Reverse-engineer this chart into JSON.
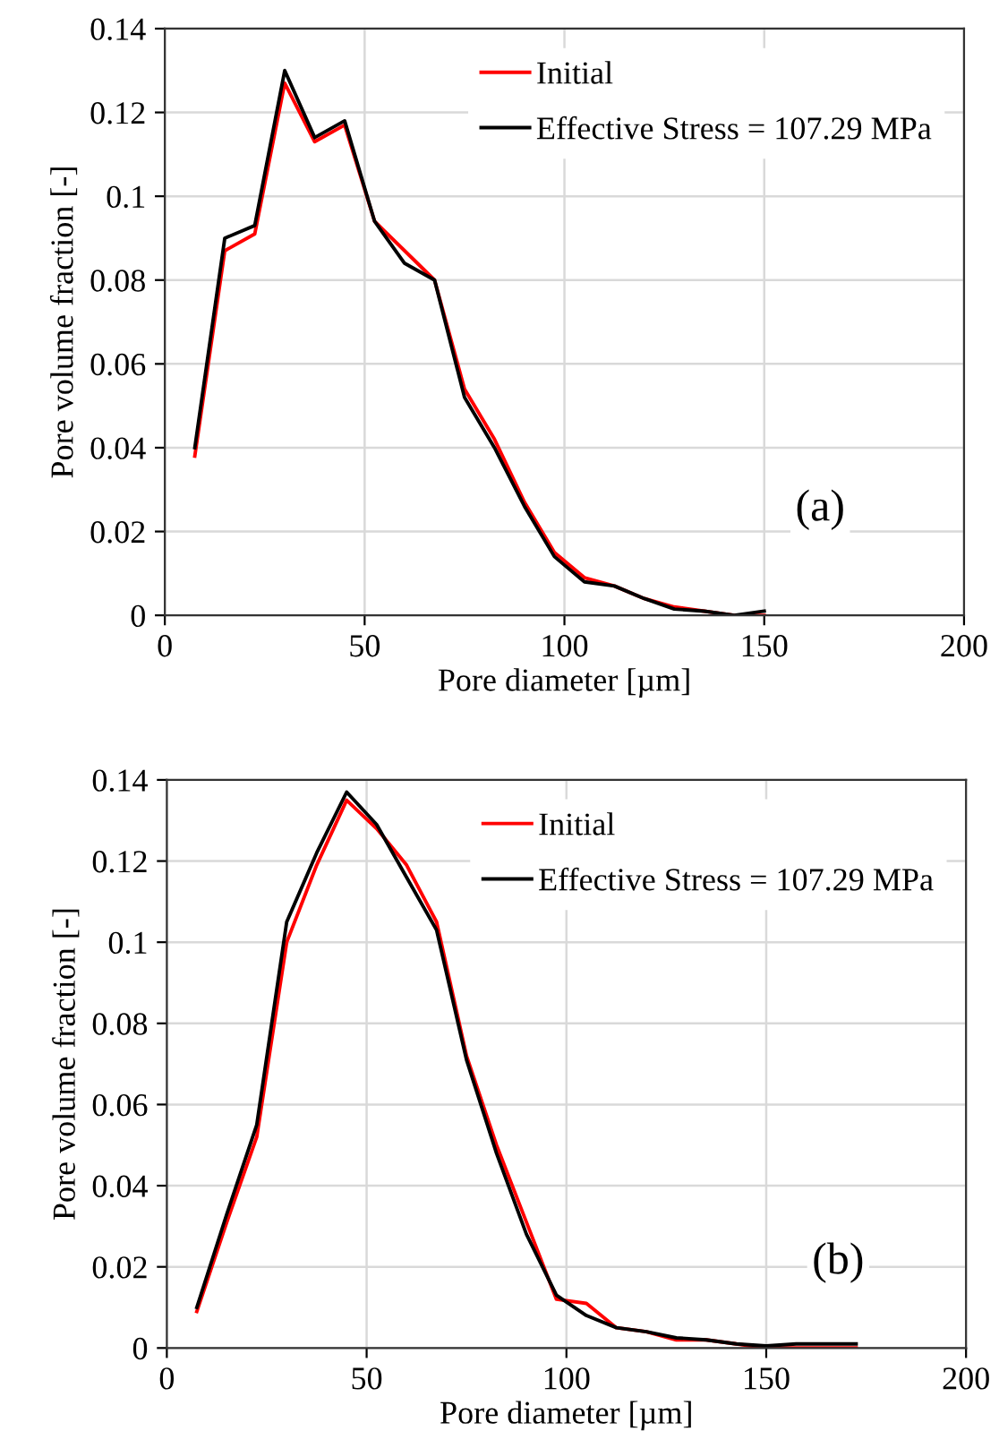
{
  "chart_data": [
    {
      "type": "line",
      "xlabel": "Pore diameter [µm]",
      "ylabel": "Pore volume fraction [-]",
      "annotations": [
        "(a)"
      ],
      "xlim": [
        0,
        200
      ],
      "xticks": [
        0,
        50,
        100,
        150,
        200
      ],
      "ylim": [
        0,
        0.14
      ],
      "yticks": [
        0,
        0.02,
        0.04,
        0.06,
        0.08,
        0.1,
        0.12,
        0.14
      ],
      "grid": true,
      "legend": "top right",
      "marker": "none",
      "line_style": "solid",
      "x": [
        7.5,
        15,
        22.5,
        30,
        37.5,
        45,
        52.5,
        60,
        67.5,
        75,
        82.5,
        90,
        97.5,
        105,
        112.5,
        120,
        127.5,
        135,
        142.5,
        150
      ],
      "series": [
        {
          "name": "Initial",
          "color": "#ff0000",
          "values": [
            0.038,
            0.087,
            0.091,
            0.127,
            0.113,
            0.117,
            0.094,
            0.087,
            0.08,
            0.054,
            0.042,
            0.027,
            0.015,
            0.009,
            0.007,
            0.004,
            0.002,
            0.001,
            0.0,
            0.0
          ]
        },
        {
          "name": "Effective Stress = 107.29 MPa",
          "color": "#000000",
          "values": [
            0.04,
            0.09,
            0.093,
            0.13,
            0.114,
            0.118,
            0.094,
            0.084,
            0.08,
            0.052,
            0.04,
            0.026,
            0.014,
            0.008,
            0.007,
            0.004,
            0.0015,
            0.001,
            0.0,
            0.001
          ]
        }
      ]
    },
    {
      "type": "line",
      "xlabel": "Pore diameter [µm]",
      "ylabel": "Pore volume fraction [-]",
      "annotations": [
        "(b)"
      ],
      "xlim": [
        0,
        200
      ],
      "xticks": [
        0,
        50,
        100,
        150,
        200
      ],
      "ylim": [
        0,
        0.14
      ],
      "yticks": [
        0,
        0.02,
        0.04,
        0.06,
        0.08,
        0.1,
        0.12,
        0.14
      ],
      "grid": true,
      "legend": "top right",
      "marker": "none",
      "line_style": "solid",
      "x": [
        7.5,
        15,
        22.5,
        30,
        37.5,
        45,
        52.5,
        60,
        67.5,
        75,
        82.5,
        90,
        97.5,
        105,
        112.5,
        120,
        127.5,
        135,
        142.5,
        150,
        157.5,
        165,
        172.5
      ],
      "series": [
        {
          "name": "Initial",
          "color": "#ff0000",
          "values": [
            0.009,
            0.031,
            0.052,
            0.1,
            0.119,
            0.135,
            0.128,
            0.119,
            0.105,
            0.072,
            0.05,
            0.031,
            0.012,
            0.011,
            0.005,
            0.004,
            0.002,
            0.002,
            0.001,
            0.0,
            0.0,
            0.0,
            0.0
          ]
        },
        {
          "name": "Effective Stress = 107.29 MPa",
          "color": "#000000",
          "values": [
            0.01,
            0.033,
            0.055,
            0.105,
            0.122,
            0.137,
            0.129,
            0.116,
            0.103,
            0.071,
            0.048,
            0.028,
            0.013,
            0.008,
            0.005,
            0.004,
            0.0025,
            0.002,
            0.001,
            0.0005,
            0.001,
            0.001,
            0.001
          ]
        }
      ]
    }
  ]
}
